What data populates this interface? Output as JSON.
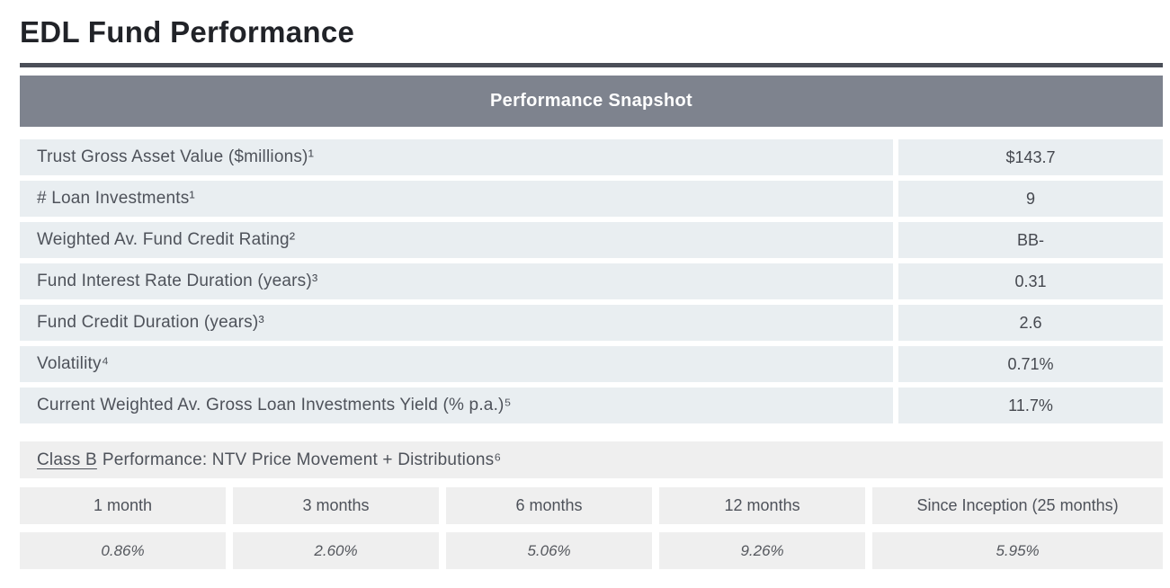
{
  "page": {
    "title": "EDL Fund Performance"
  },
  "snapshot": {
    "header": "Performance Snapshot",
    "rows": [
      {
        "label": "Trust Gross Asset Value ($millions)¹",
        "value": "$143.7"
      },
      {
        "label": "# Loan Investments¹",
        "value": "9"
      },
      {
        "label": "Weighted Av. Fund Credit Rating²",
        "value": "BB-"
      },
      {
        "label": "Fund Interest Rate Duration (years)³",
        "value": "0.31"
      },
      {
        "label": "Fund Credit Duration (years)³",
        "value": "2.6"
      },
      {
        "label": "Volatility⁴",
        "value": "0.71%"
      },
      {
        "label": "Current Weighted Av. Gross Loan Investments Yield (% p.a.)⁵",
        "value": "11.7%"
      }
    ]
  },
  "class_b": {
    "underlined": "Class B",
    "rest": "Performance: NTV Price Movement + Distributions⁶"
  },
  "performance_table": {
    "periods": [
      "1 month",
      "3 months",
      "6 months",
      "12 months",
      "Since Inception (25 months)"
    ],
    "returns": [
      "0.86%",
      "2.60%",
      "5.06%",
      "9.26%",
      "5.95%"
    ]
  },
  "colors": {
    "header_bar": "#7e838e",
    "snapshot_row_bg": "#e9eef1",
    "table_row_bg": "#efefef",
    "rule": "#4b4f58",
    "title_text": "#212328",
    "body_text": "#4e525a"
  }
}
